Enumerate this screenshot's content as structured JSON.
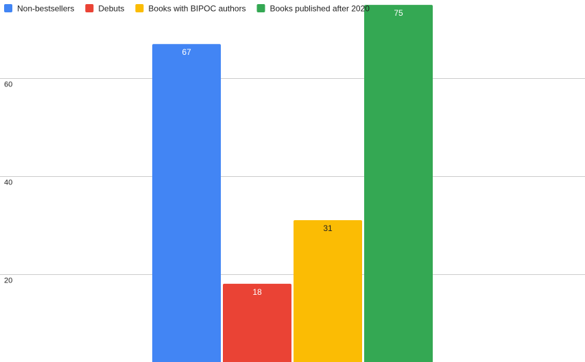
{
  "chart_data": {
    "type": "bar",
    "title": "",
    "xlabel": "",
    "ylabel": "",
    "categories": [
      ""
    ],
    "series": [
      {
        "name": "Non-bestsellers",
        "values": [
          67
        ],
        "color": "#4285f4",
        "label_color": "#ffffff"
      },
      {
        "name": "Debuts",
        "values": [
          18
        ],
        "color": "#ea4335",
        "label_color": "#ffffff"
      },
      {
        "name": "Books with BIPOC authors",
        "values": [
          31
        ],
        "color": "#fbbc04",
        "label_color": "#222222"
      },
      {
        "name": "Books published after 2020",
        "values": [
          75
        ],
        "color": "#34a853",
        "label_color": "#ffffff"
      }
    ],
    "y_ticks": [
      20,
      40,
      60
    ],
    "ylim": [
      2,
      76
    ],
    "grid": true,
    "legend_position": "top-left"
  }
}
